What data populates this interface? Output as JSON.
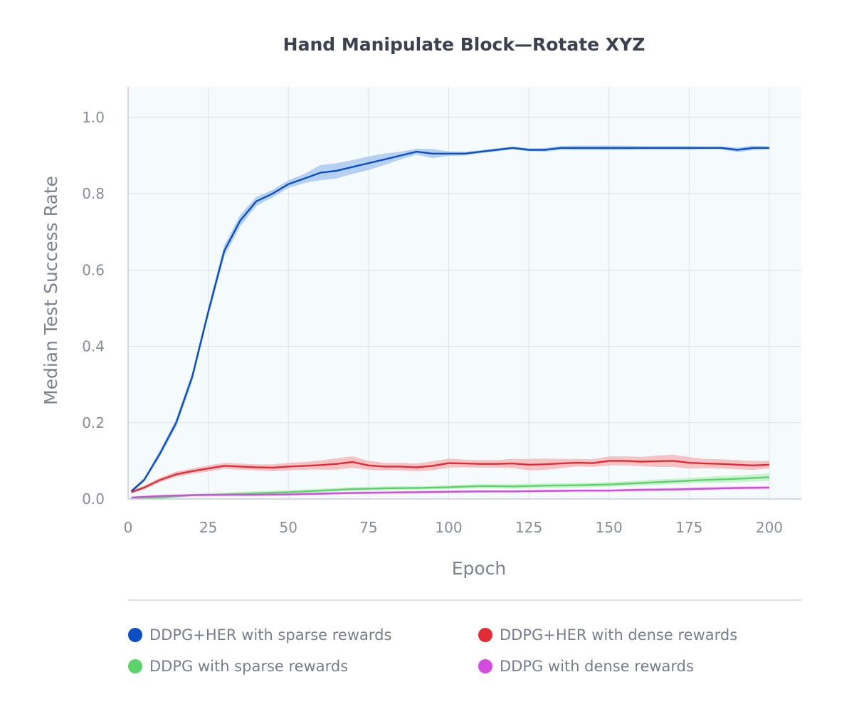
{
  "chart_data": {
    "type": "line",
    "title": "Hand Manipulate Block—Rotate XYZ",
    "xlabel": "Epoch",
    "ylabel": "Median Test Success Rate",
    "xlim": [
      0,
      210
    ],
    "ylim": [
      0,
      1.08
    ],
    "xticks": [
      0,
      25,
      50,
      75,
      100,
      125,
      150,
      175,
      200
    ],
    "xtick_labels": [
      "0",
      "25",
      "50",
      "75",
      "100",
      "125",
      "150",
      "175",
      "200"
    ],
    "yticks": [
      0.0,
      0.2,
      0.4,
      0.6,
      0.8,
      1.0
    ],
    "ytick_labels": [
      "0.0",
      "0.2",
      "0.4",
      "0.6",
      "0.8",
      "1.0"
    ],
    "grid": true,
    "legend_position": "bottom",
    "series": [
      {
        "name": "DDPG+HER with sparse rewards",
        "color": "#0b4fc4",
        "band_color": "#a9c8ee",
        "x": [
          1,
          5,
          10,
          15,
          20,
          25,
          30,
          35,
          40,
          45,
          50,
          55,
          60,
          65,
          70,
          75,
          80,
          85,
          90,
          95,
          100,
          105,
          110,
          115,
          120,
          125,
          130,
          135,
          140,
          145,
          150,
          155,
          160,
          165,
          170,
          175,
          180,
          185,
          190,
          195,
          200
        ],
        "y": [
          0.02,
          0.05,
          0.12,
          0.2,
          0.32,
          0.49,
          0.65,
          0.73,
          0.78,
          0.8,
          0.825,
          0.84,
          0.855,
          0.86,
          0.87,
          0.88,
          0.89,
          0.9,
          0.91,
          0.905,
          0.905,
          0.905,
          0.91,
          0.915,
          0.92,
          0.915,
          0.915,
          0.92,
          0.92,
          0.92,
          0.92,
          0.92,
          0.92,
          0.92,
          0.92,
          0.92,
          0.92,
          0.92,
          0.915,
          0.92,
          0.92
        ],
        "band": [
          0.004,
          0.005,
          0.008,
          0.01,
          0.012,
          0.012,
          0.015,
          0.015,
          0.012,
          0.01,
          0.01,
          0.012,
          0.02,
          0.02,
          0.018,
          0.018,
          0.015,
          0.01,
          0.008,
          0.012,
          0.006,
          0.005,
          0.004,
          0.004,
          0.004,
          0.004,
          0.005,
          0.005,
          0.006,
          0.006,
          0.006,
          0.006,
          0.005,
          0.005,
          0.005,
          0.005,
          0.004,
          0.004,
          0.006,
          0.006,
          0.004
        ]
      },
      {
        "name": "DDPG+HER with dense rewards",
        "color": "#e22b35",
        "band_color": "#f4b8bb",
        "x": [
          1,
          5,
          10,
          15,
          20,
          25,
          30,
          35,
          40,
          45,
          50,
          55,
          60,
          65,
          70,
          75,
          80,
          85,
          90,
          95,
          100,
          105,
          110,
          115,
          120,
          125,
          130,
          135,
          140,
          145,
          150,
          155,
          160,
          165,
          170,
          175,
          180,
          185,
          190,
          195,
          200
        ],
        "y": [
          0.018,
          0.03,
          0.05,
          0.065,
          0.073,
          0.08,
          0.087,
          0.085,
          0.083,
          0.082,
          0.085,
          0.087,
          0.089,
          0.092,
          0.097,
          0.088,
          0.085,
          0.085,
          0.083,
          0.087,
          0.094,
          0.093,
          0.092,
          0.092,
          0.093,
          0.09,
          0.091,
          0.093,
          0.095,
          0.094,
          0.1,
          0.1,
          0.098,
          0.099,
          0.1,
          0.095,
          0.093,
          0.092,
          0.09,
          0.088,
          0.09
        ],
        "band": [
          0.004,
          0.005,
          0.006,
          0.007,
          0.007,
          0.008,
          0.008,
          0.008,
          0.008,
          0.009,
          0.01,
          0.01,
          0.012,
          0.015,
          0.015,
          0.012,
          0.01,
          0.01,
          0.01,
          0.012,
          0.012,
          0.01,
          0.01,
          0.01,
          0.012,
          0.015,
          0.015,
          0.012,
          0.01,
          0.01,
          0.012,
          0.012,
          0.012,
          0.015,
          0.016,
          0.015,
          0.012,
          0.012,
          0.012,
          0.012,
          0.01
        ]
      },
      {
        "name": "DDPG with sparse rewards",
        "color": "#5bd36a",
        "band_color": "#c2eec8",
        "x": [
          1,
          10,
          20,
          30,
          40,
          50,
          60,
          70,
          80,
          90,
          100,
          110,
          120,
          130,
          140,
          150,
          160,
          170,
          180,
          190,
          200
        ],
        "y": [
          0.003,
          0.004,
          0.01,
          0.012,
          0.015,
          0.018,
          0.022,
          0.026,
          0.028,
          0.029,
          0.031,
          0.034,
          0.033,
          0.035,
          0.036,
          0.038,
          0.042,
          0.046,
          0.05,
          0.053,
          0.057
        ],
        "band": [
          0.002,
          0.003,
          0.004,
          0.005,
          0.005,
          0.005,
          0.005,
          0.005,
          0.005,
          0.005,
          0.005,
          0.005,
          0.006,
          0.006,
          0.006,
          0.006,
          0.007,
          0.007,
          0.008,
          0.009,
          0.01
        ]
      },
      {
        "name": "DDPG with dense rewards",
        "color": "#d34be0",
        "band_color": "#efc2f3",
        "x": [
          1,
          10,
          20,
          30,
          40,
          50,
          60,
          70,
          80,
          90,
          100,
          110,
          120,
          130,
          140,
          150,
          160,
          170,
          180,
          190,
          200
        ],
        "y": [
          0.004,
          0.008,
          0.01,
          0.011,
          0.011,
          0.012,
          0.014,
          0.016,
          0.017,
          0.018,
          0.019,
          0.02,
          0.02,
          0.021,
          0.022,
          0.022,
          0.024,
          0.025,
          0.027,
          0.029,
          0.03
        ],
        "band": [
          0.002,
          0.002,
          0.003,
          0.003,
          0.003,
          0.003,
          0.003,
          0.003,
          0.003,
          0.003,
          0.003,
          0.003,
          0.003,
          0.003,
          0.003,
          0.003,
          0.004,
          0.004,
          0.004,
          0.004,
          0.004
        ]
      }
    ]
  },
  "legend_items": [
    {
      "label": "DDPG+HER with sparse rewards",
      "color": "#0b4fc4"
    },
    {
      "label": "DDPG+HER with dense rewards",
      "color": "#e22b35"
    },
    {
      "label": "DDPG with sparse rewards",
      "color": "#5bd36a"
    },
    {
      "label": "DDPG with dense rewards",
      "color": "#d34be0"
    }
  ]
}
